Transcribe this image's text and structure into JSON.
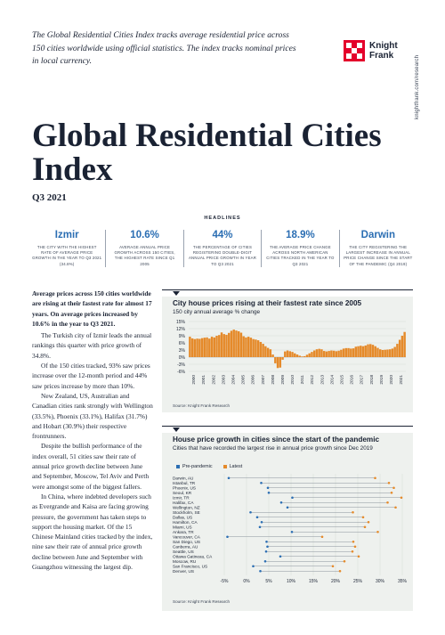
{
  "intro": "The Global Residential Cities Index tracks average residential price across 150 cities worldwide using official statistics. The index tracks nominal prices in local currency.",
  "logo": {
    "line1": "Knight",
    "line2": "Frank"
  },
  "side_url": "knightfrank.com/research",
  "title": "Global Residential Cities Index",
  "quarter": "Q3 2021",
  "headlines_label": "HEADLINES",
  "headlines": [
    {
      "value": "Izmir",
      "desc": "The city with the highest rate of average price growth in the year to Q3 2021 (34.8%)"
    },
    {
      "value": "10.6%",
      "desc": "Average annual price growth across 150 cities, the highest rate since Q1 2005"
    },
    {
      "value": "44%",
      "desc": "The percentage of cities registering double-digit annual price growth in year to Q3 2021"
    },
    {
      "value": "18.9%",
      "desc": "The average price change across North American cities tracked in the year to Q3 2021"
    },
    {
      "value": "Darwin",
      "desc": "The city registering the largest increase in annual price change since the start of the pandemic (Q4 2019)"
    }
  ],
  "body": {
    "lead": "Average prices across 150 cities worldwide are rising at their fastest rate for almost 17 years. On average prices increased by 10.6% in the year to Q3 2021.",
    "paragraphs": [
      "The Turkish city of Izmir leads the annual rankings this quarter with price growth of 34.8%.",
      "Of the 150 cities tracked, 93% saw prices increase over the 12-month period and 44% saw prices increase by more than 10%.",
      "New Zealand, US, Australian and Canadian cities rank strongly with Wellington (33.5%), Phoenix (33.1%), Halifax (31.7%) and Hobart (30.9%) their respective frontrunners.",
      "Despite the bullish performance of the index overall, 51 cities saw their rate of annual price growth decline between June and September, Moscow, Tel Aviv and Perth were amongst some of the biggest fallers.",
      "In China, where indebted developers such as Evergrande and Kaisa are facing growing pressure, the government has taken steps to support the housing market. Of the 15 Chinese Mainland cities tracked by the index, nine saw their rate of annual price growth decline between June and September with Guangzhou witnessing the largest dip."
    ]
  },
  "chart1": {
    "title": "City house prices rising at their fastest rate since 2005",
    "subtitle": "150 city annual average % change",
    "source": "Source: Knight Frank Research"
  },
  "chart2": {
    "title": "House price growth in cities since the start of the pandemic",
    "subtitle": "Cities that have recorded the largest rise in annual price growth since Dec 2019",
    "source": "Source: Knight Frank Research",
    "legend": [
      "Pre-pandemic",
      "Latest"
    ]
  },
  "colors": {
    "accent_blue": "#2b6eb3",
    "bar_orange": "#e58a2a",
    "brand_red": "#e4002b",
    "panel_bg": "#eef1ee"
  },
  "chart_data": [
    {
      "type": "bar",
      "title": "City house prices rising at their fastest rate since 2005",
      "subtitle": "150 city annual average % change",
      "ylabel": "",
      "ylim": [
        -6,
        15
      ],
      "yticks": [
        "15%",
        "12%",
        "9%",
        "6%",
        "3%",
        "0%",
        "-3%",
        "-6%"
      ],
      "xticks": [
        "2000",
        "2001",
        "2002",
        "2003",
        "2004",
        "2005",
        "2006",
        "2007",
        "2008",
        "2009",
        "2010",
        "2011",
        "2012",
        "2013",
        "2014",
        "2015",
        "2016",
        "2017",
        "2018",
        "2019",
        "2020",
        "2021"
      ],
      "values": [
        8.6,
        7.9,
        7.6,
        7.8,
        7.7,
        8.0,
        8.2,
        8.3,
        7.8,
        8.6,
        8.3,
        9.0,
        9.3,
        10.4,
        9.7,
        9.4,
        10.2,
        11.1,
        11.6,
        11.2,
        10.9,
        10.3,
        8.8,
        8.3,
        8.6,
        8.2,
        7.6,
        7.4,
        7.1,
        6.4,
        5.6,
        4.6,
        3.9,
        3.3,
        1.1,
        -2.6,
        -4.6,
        -4.4,
        -1.1,
        2.4,
        2.8,
        2.5,
        2.2,
        1.6,
        1.1,
        0.6,
        0.3,
        0.4,
        1.0,
        1.6,
        2.2,
        2.8,
        3.3,
        3.5,
        3.3,
        2.6,
        2.4,
        2.6,
        2.8,
        2.7,
        2.5,
        2.7,
        3.1,
        3.6,
        3.8,
        3.8,
        3.6,
        3.7,
        4.4,
        4.6,
        4.8,
        4.6,
        4.9,
        5.4,
        5.5,
        5.2,
        4.6,
        3.9,
        3.3,
        3.0,
        3.1,
        3.2,
        3.3,
        3.6,
        4.3,
        5.6,
        7.3,
        9.0,
        10.6
      ]
    },
    {
      "type": "scatter",
      "title": "House price growth in cities since the start of the pandemic",
      "subtitle": "Cities that have recorded the largest rise in annual price growth since Dec 2019",
      "xlim": [
        -5,
        35
      ],
      "xticks": [
        "-5%",
        "0%",
        "5%",
        "10%",
        "15%",
        "20%",
        "25%",
        "30%",
        "35%"
      ],
      "categories": [
        "Darwin, AU",
        "Istanbul, TR",
        "Phoenix, US",
        "Seoul, KR",
        "Izmir, TR",
        "Halifax, CA",
        "Wellington, NZ",
        "Stockholm, SE",
        "Dallas, US",
        "Hamilton, CA",
        "Miami, US",
        "Ankara, TR",
        "Vancouver, CA",
        "San Diego, US",
        "Canberra, AU",
        "Seattle, US",
        "Ottawa Gatineau, CA",
        "Moscow, RU",
        "San Francisco, US",
        "Denver, US"
      ],
      "series": [
        {
          "name": "Pre-pandemic",
          "values": [
            -4,
            3.3,
            4.8,
            5.0,
            10.3,
            7.8,
            9.2,
            0.9,
            2.4,
            3.4,
            3.0,
            10.2,
            -4.3,
            4.5,
            4.7,
            4.4,
            7.6,
            4.2,
            1.5,
            3.1
          ]
        },
        {
          "name": "Latest",
          "values": [
            28.9,
            32.0,
            33.1,
            32.6,
            34.8,
            31.7,
            33.5,
            23.9,
            26.2,
            27.4,
            26.6,
            29.5,
            17.0,
            24.0,
            24.4,
            23.8,
            25.2,
            22.0,
            19.4,
            21.0
          ]
        }
      ]
    }
  ]
}
